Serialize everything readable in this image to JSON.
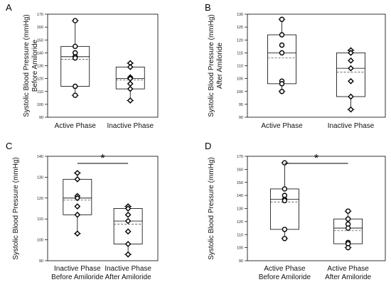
{
  "chart_data": [
    {
      "panel": "A",
      "type": "box",
      "ylabel": [
        "Systolic Blood Pressure (mmHg)",
        "Before Amiloride"
      ],
      "ylim": [
        90,
        170
      ],
      "yticks": [
        90,
        100,
        110,
        120,
        130,
        140,
        150,
        160,
        170
      ],
      "categories": [
        [
          "Active Phase"
        ],
        [
          "Inactive Phase"
        ]
      ],
      "groups": [
        {
          "q1": 114,
          "median": 137,
          "q3": 145,
          "mean": 135,
          "whisker_low": 107,
          "whisker_high": 165,
          "points": [
            165,
            145,
            140,
            137,
            136,
            114,
            107
          ],
          "marker": "circle"
        },
        {
          "q1": 112,
          "median": 120,
          "q3": 129,
          "mean": 119,
          "whisker_low": 103,
          "whisker_high": 132,
          "points": [
            132,
            129,
            121,
            120,
            116,
            112,
            103
          ],
          "marker": "diamond"
        }
      ],
      "significance": null
    },
    {
      "panel": "B",
      "type": "box",
      "ylabel": [
        "Systolic Blood Pressure (mmHg)",
        "After Amiloride"
      ],
      "ylim": [
        90,
        130
      ],
      "yticks": [
        90,
        95,
        100,
        105,
        110,
        115,
        120,
        125,
        130
      ],
      "categories": [
        [
          "Active Phase"
        ],
        [
          "Inactive Phase"
        ]
      ],
      "groups": [
        {
          "q1": 103,
          "median": 115,
          "q3": 122,
          "mean": 113,
          "whisker_low": 100,
          "whisker_high": 128,
          "points": [
            128,
            122,
            118,
            115,
            104,
            103,
            100
          ],
          "marker": "circle"
        },
        {
          "q1": 98,
          "median": 109,
          "q3": 115,
          "mean": 107.5,
          "whisker_low": 93,
          "whisker_high": 116,
          "points": [
            116,
            115,
            112,
            109,
            104,
            98,
            93
          ],
          "marker": "diamond"
        }
      ],
      "significance": null
    },
    {
      "panel": "C",
      "type": "box",
      "ylabel": [
        "Systolic Blood Pressure (mmHg)"
      ],
      "ylim": [
        90,
        140
      ],
      "yticks": [
        90,
        100,
        110,
        120,
        130,
        140
      ],
      "categories": [
        [
          "Inactive Phase",
          "Before Amiloride"
        ],
        [
          "Inactive Phase",
          "After Amiloride"
        ]
      ],
      "groups": [
        {
          "q1": 112,
          "median": 120,
          "q3": 129,
          "mean": 119,
          "whisker_low": 103,
          "whisker_high": 132,
          "points": [
            132,
            129,
            121,
            120,
            116,
            112,
            103
          ],
          "marker": "diamond"
        },
        {
          "q1": 98,
          "median": 109,
          "q3": 115,
          "mean": 107.5,
          "whisker_low": 93,
          "whisker_high": 116,
          "points": [
            116,
            115,
            112,
            109,
            104,
            98,
            93
          ],
          "marker": "diamond"
        }
      ],
      "significance": "*"
    },
    {
      "panel": "D",
      "type": "box",
      "ylabel": [
        "Systolic Blood Pressure (mmHg)"
      ],
      "ylim": [
        90,
        170
      ],
      "yticks": [
        90,
        100,
        110,
        120,
        130,
        140,
        150,
        160,
        170
      ],
      "categories": [
        [
          "Active Phase",
          "Before Amiloride"
        ],
        [
          "Active Phase",
          "After Amiloride"
        ]
      ],
      "groups": [
        {
          "q1": 114,
          "median": 137,
          "q3": 145,
          "mean": 135,
          "whisker_low": 107,
          "whisker_high": 165,
          "points": [
            165,
            145,
            140,
            137,
            136,
            114,
            107
          ],
          "marker": "circle"
        },
        {
          "q1": 103,
          "median": 115,
          "q3": 122,
          "mean": 113,
          "whisker_low": 100,
          "whisker_high": 128,
          "points": [
            128,
            122,
            118,
            115,
            104,
            103,
            100
          ],
          "marker": "circle"
        }
      ],
      "significance": "*"
    }
  ]
}
